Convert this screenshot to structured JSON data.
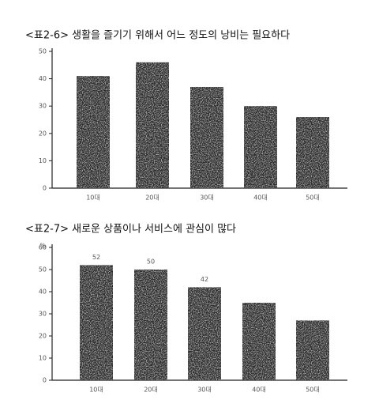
{
  "chart_data": [
    {
      "type": "bar",
      "title": "<표2-6> 생활을 즐기기 위해서 어느 정도의 낭비는 필요하다",
      "categories": [
        "10대",
        "20대",
        "30대",
        "40대",
        "50대"
      ],
      "values": [
        41,
        46,
        37,
        30,
        26
      ],
      "color": "#2b2b2b",
      "ylim": [
        0,
        50
      ],
      "yticks": [
        0,
        10,
        20,
        30,
        40,
        50
      ]
    },
    {
      "type": "bar",
      "title": "<표2-7> 새로운 상품이나 서비스에 관심이 많다",
      "y_label": "%",
      "categories": [
        "10대",
        "20대",
        "30대",
        "40대",
        "50대"
      ],
      "values": [
        52,
        50,
        42,
        35,
        27
      ],
      "value_labels": [
        "52",
        "50",
        "42",
        null,
        null
      ],
      "color": "#2b2b2b",
      "ylim": [
        0,
        60
      ],
      "yticks": [
        0,
        10,
        20,
        30,
        40,
        50,
        60
      ]
    }
  ]
}
